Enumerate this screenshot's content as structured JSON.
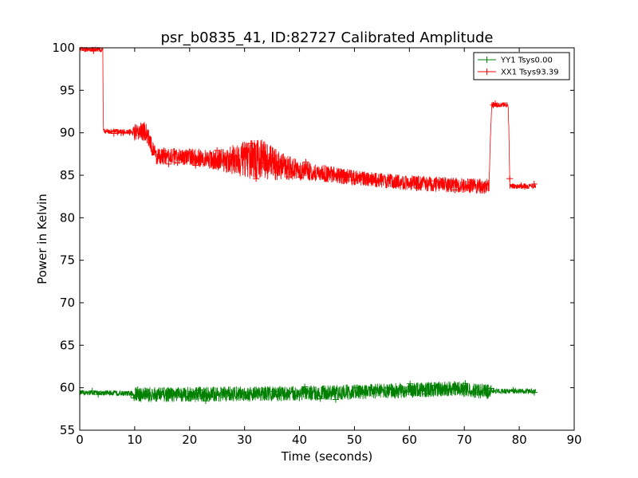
{
  "chart_data": {
    "type": "line",
    "title": "psr_b0835_41, ID:82727 Calibrated Amplitude",
    "xlabel": "Time (seconds)",
    "ylabel": "Power in Kelvin",
    "xlim": [
      0,
      90
    ],
    "ylim": [
      55,
      100
    ],
    "xticks": [
      0,
      10,
      20,
      30,
      40,
      50,
      60,
      70,
      80,
      90
    ],
    "yticks": [
      55,
      60,
      65,
      70,
      75,
      80,
      85,
      90,
      95,
      100
    ],
    "grid": false,
    "legend_position": "top-right",
    "series": [
      {
        "name": "YY1 Tsys0.00",
        "color": "#008000",
        "marker": "+",
        "points": [
          {
            "x": 0,
            "y": 59.4,
            "spread": 0.3
          },
          {
            "x": 5,
            "y": 59.4,
            "spread": 0.3
          },
          {
            "x": 9.5,
            "y": 59.3,
            "spread": 0.3
          },
          {
            "x": 10,
            "y": 59.2,
            "spread": 0.9
          },
          {
            "x": 20,
            "y": 59.2,
            "spread": 0.9
          },
          {
            "x": 30,
            "y": 59.3,
            "spread": 0.9
          },
          {
            "x": 40,
            "y": 59.3,
            "spread": 0.9
          },
          {
            "x": 50,
            "y": 59.5,
            "spread": 0.9
          },
          {
            "x": 60,
            "y": 59.7,
            "spread": 0.9
          },
          {
            "x": 68,
            "y": 59.9,
            "spread": 0.9
          },
          {
            "x": 74.5,
            "y": 59.5,
            "spread": 0.9
          },
          {
            "x": 75,
            "y": 59.6,
            "spread": 0.3
          },
          {
            "x": 80,
            "y": 59.6,
            "spread": 0.3
          },
          {
            "x": 83,
            "y": 59.6,
            "spread": 0.3
          }
        ]
      },
      {
        "name": "XX1 Tsys93.39",
        "color": "#ff0000",
        "marker": "+",
        "points": [
          {
            "x": 0,
            "y": 99.8,
            "spread": 0.3
          },
          {
            "x": 4.2,
            "y": 99.8,
            "spread": 0.3
          },
          {
            "x": 4.3,
            "y": 90.2,
            "spread": 0.3
          },
          {
            "x": 9.5,
            "y": 90.1,
            "spread": 0.3
          },
          {
            "x": 10,
            "y": 90.0,
            "spread": 1.0
          },
          {
            "x": 12,
            "y": 90.2,
            "spread": 1.2
          },
          {
            "x": 13,
            "y": 88.5,
            "spread": 1.0
          },
          {
            "x": 14,
            "y": 87.2,
            "spread": 1.0
          },
          {
            "x": 20,
            "y": 87.2,
            "spread": 1.0
          },
          {
            "x": 25,
            "y": 86.8,
            "spread": 1.2
          },
          {
            "x": 30,
            "y": 86.8,
            "spread": 2.2
          },
          {
            "x": 33,
            "y": 86.9,
            "spread": 2.4
          },
          {
            "x": 36,
            "y": 86.2,
            "spread": 1.8
          },
          {
            "x": 40,
            "y": 85.6,
            "spread": 1.1
          },
          {
            "x": 50,
            "y": 84.7,
            "spread": 0.9
          },
          {
            "x": 60,
            "y": 84.1,
            "spread": 0.9
          },
          {
            "x": 70,
            "y": 83.8,
            "spread": 0.9
          },
          {
            "x": 74.5,
            "y": 83.7,
            "spread": 0.9
          },
          {
            "x": 74.7,
            "y": 88.5,
            "spread": 0.2
          },
          {
            "x": 75,
            "y": 93.3,
            "spread": 0.3
          },
          {
            "x": 78,
            "y": 93.3,
            "spread": 0.3
          },
          {
            "x": 78.3,
            "y": 83.7,
            "spread": 0.3
          },
          {
            "x": 83,
            "y": 83.7,
            "spread": 0.3
          }
        ]
      }
    ]
  }
}
